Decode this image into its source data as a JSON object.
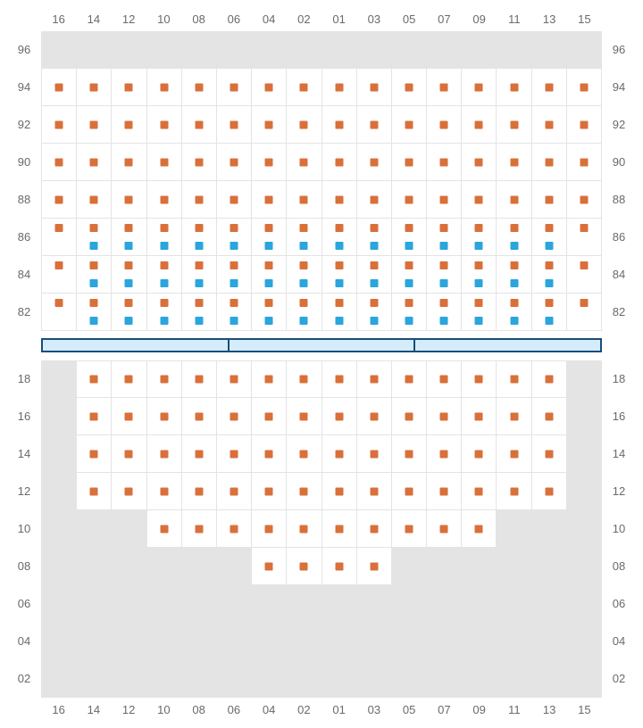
{
  "type": "seating-chart",
  "colors": {
    "orange": "#d9703a",
    "blue": "#2aa5dd",
    "cell_bg_inactive": "#e4e4e4",
    "cell_bg_active": "#ffffff",
    "border": "#e4e4e4",
    "label": "#6a6a6a",
    "divider_border": "#1a4d7a",
    "divider_fill": "#d4ecfb"
  },
  "columns": [
    "16",
    "14",
    "12",
    "10",
    "08",
    "06",
    "04",
    "02",
    "01",
    "03",
    "05",
    "07",
    "09",
    "11",
    "13",
    "15"
  ],
  "upper": {
    "rows": [
      "96",
      "94",
      "92",
      "90",
      "88",
      "86",
      "84",
      "82"
    ],
    "cells": [
      {
        "r": 0,
        "pattern": "empty_all"
      },
      {
        "r": 1,
        "pattern": "orange_all"
      },
      {
        "r": 2,
        "pattern": "orange_all"
      },
      {
        "r": 3,
        "pattern": "orange_all"
      },
      {
        "r": 4,
        "pattern": "orange_all"
      },
      {
        "r": 5,
        "pattern": "mixed",
        "cols": [
          {
            "c": 0,
            "m": [
              "orange-top"
            ]
          },
          {
            "c": 1,
            "m": [
              "orange-top",
              "blue-bot"
            ]
          },
          {
            "c": 2,
            "m": [
              "orange-top",
              "blue-bot"
            ]
          },
          {
            "c": 3,
            "m": [
              "orange-top",
              "blue-bot"
            ]
          },
          {
            "c": 4,
            "m": [
              "orange-top",
              "blue-bot"
            ]
          },
          {
            "c": 5,
            "m": [
              "orange-top",
              "blue-bot"
            ]
          },
          {
            "c": 6,
            "m": [
              "orange-top",
              "blue-bot"
            ]
          },
          {
            "c": 7,
            "m": [
              "orange-top",
              "blue-bot"
            ]
          },
          {
            "c": 8,
            "m": [
              "orange-top",
              "blue-bot"
            ]
          },
          {
            "c": 9,
            "m": [
              "orange-top",
              "blue-bot"
            ]
          },
          {
            "c": 10,
            "m": [
              "orange-top",
              "blue-bot"
            ]
          },
          {
            "c": 11,
            "m": [
              "orange-top",
              "blue-bot"
            ]
          },
          {
            "c": 12,
            "m": [
              "orange-top",
              "blue-bot"
            ]
          },
          {
            "c": 13,
            "m": [
              "orange-top",
              "blue-bot"
            ]
          },
          {
            "c": 14,
            "m": [
              "orange-top",
              "blue-bot"
            ]
          },
          {
            "c": 15,
            "m": [
              "orange-top"
            ]
          }
        ]
      },
      {
        "r": 6,
        "pattern": "mixed",
        "cols": [
          {
            "c": 0,
            "m": [
              "orange-top"
            ]
          },
          {
            "c": 1,
            "m": [
              "orange-top",
              "blue-bot"
            ]
          },
          {
            "c": 2,
            "m": [
              "orange-top",
              "blue-bot"
            ]
          },
          {
            "c": 3,
            "m": [
              "orange-top",
              "blue-bot"
            ]
          },
          {
            "c": 4,
            "m": [
              "orange-top",
              "blue-bot"
            ]
          },
          {
            "c": 5,
            "m": [
              "orange-top",
              "blue-bot"
            ]
          },
          {
            "c": 6,
            "m": [
              "orange-top",
              "blue-bot"
            ]
          },
          {
            "c": 7,
            "m": [
              "orange-top",
              "blue-bot"
            ]
          },
          {
            "c": 8,
            "m": [
              "orange-top",
              "blue-bot"
            ]
          },
          {
            "c": 9,
            "m": [
              "orange-top",
              "blue-bot"
            ]
          },
          {
            "c": 10,
            "m": [
              "orange-top",
              "blue-bot"
            ]
          },
          {
            "c": 11,
            "m": [
              "orange-top",
              "blue-bot"
            ]
          },
          {
            "c": 12,
            "m": [
              "orange-top",
              "blue-bot"
            ]
          },
          {
            "c": 13,
            "m": [
              "orange-top",
              "blue-bot"
            ]
          },
          {
            "c": 14,
            "m": [
              "orange-top",
              "blue-bot"
            ]
          },
          {
            "c": 15,
            "m": [
              "orange-top"
            ]
          }
        ]
      },
      {
        "r": 7,
        "pattern": "mixed",
        "cols": [
          {
            "c": 0,
            "m": [
              "orange-top"
            ]
          },
          {
            "c": 1,
            "m": [
              "orange-top",
              "blue-bot"
            ]
          },
          {
            "c": 2,
            "m": [
              "orange-top",
              "blue-bot"
            ]
          },
          {
            "c": 3,
            "m": [
              "orange-top",
              "blue-bot"
            ]
          },
          {
            "c": 4,
            "m": [
              "orange-top",
              "blue-bot"
            ]
          },
          {
            "c": 5,
            "m": [
              "orange-top",
              "blue-bot"
            ]
          },
          {
            "c": 6,
            "m": [
              "orange-top",
              "blue-bot"
            ]
          },
          {
            "c": 7,
            "m": [
              "orange-top",
              "blue-bot"
            ]
          },
          {
            "c": 8,
            "m": [
              "orange-top",
              "blue-bot"
            ]
          },
          {
            "c": 9,
            "m": [
              "orange-top",
              "blue-bot"
            ]
          },
          {
            "c": 10,
            "m": [
              "orange-top",
              "blue-bot"
            ]
          },
          {
            "c": 11,
            "m": [
              "orange-top",
              "blue-bot"
            ]
          },
          {
            "c": 12,
            "m": [
              "orange-top",
              "blue-bot"
            ]
          },
          {
            "c": 13,
            "m": [
              "orange-top",
              "blue-bot"
            ]
          },
          {
            "c": 14,
            "m": [
              "orange-top",
              "blue-bot"
            ]
          },
          {
            "c": 15,
            "m": [
              "orange-top"
            ]
          }
        ]
      }
    ]
  },
  "divider_segments": 3,
  "lower": {
    "rows": [
      "18",
      "16",
      "14",
      "12",
      "10",
      "08",
      "06",
      "04",
      "02"
    ],
    "cells": [
      {
        "r": 0,
        "active": [
          1,
          14
        ],
        "orange": [
          1,
          14
        ]
      },
      {
        "r": 1,
        "active": [
          1,
          14
        ],
        "orange": [
          1,
          14
        ]
      },
      {
        "r": 2,
        "active": [
          1,
          14
        ],
        "orange": [
          1,
          14
        ]
      },
      {
        "r": 3,
        "active": [
          1,
          14
        ],
        "orange": [
          1,
          14
        ]
      },
      {
        "r": 4,
        "active": [
          3,
          12
        ],
        "orange": [
          3,
          12
        ]
      },
      {
        "r": 5,
        "active": [
          6,
          9
        ],
        "orange": [
          6,
          9
        ]
      },
      {
        "r": 6,
        "active": null,
        "orange": null
      },
      {
        "r": 7,
        "active": null,
        "orange": null
      },
      {
        "r": 8,
        "active": null,
        "orange": null
      }
    ]
  }
}
